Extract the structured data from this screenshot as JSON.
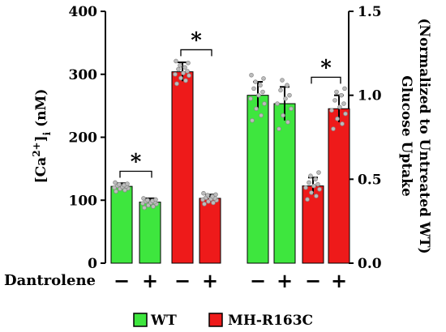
{
  "chart_data": [
    {
      "type": "bar",
      "panel": "calcium",
      "ylabel_parts": {
        "base": "[Ca",
        "sup": "2+",
        "close": "]",
        "sub": "i",
        "unit": " (nM)"
      },
      "ylim": [
        0,
        400
      ],
      "yticks": [
        0,
        100,
        200,
        300,
        400
      ],
      "bars": [
        {
          "group": "WT",
          "dantrolene": "−",
          "value": 122,
          "error": 5,
          "points": [
            114,
            116,
            118,
            119,
            120,
            121,
            122,
            123,
            124,
            125,
            126,
            128
          ]
        },
        {
          "group": "WT",
          "dantrolene": "+",
          "value": 97,
          "error": 6,
          "points": [
            88,
            90,
            92,
            94,
            95,
            96,
            97,
            98,
            99,
            100,
            101,
            103
          ]
        },
        {
          "group": "MH-R163C",
          "dantrolene": "−",
          "value": 304,
          "error": 15,
          "points": [
            285,
            290,
            294,
            298,
            300,
            302,
            305,
            308,
            311,
            314,
            318,
            321
          ]
        },
        {
          "group": "MH-R163C",
          "dantrolene": "+",
          "value": 103,
          "error": 6,
          "points": [
            94,
            96,
            98,
            100,
            101,
            102,
            103,
            104,
            106,
            108,
            109,
            111
          ]
        }
      ],
      "significance": [
        {
          "pair": [
            0,
            1
          ],
          "label": "*"
        },
        {
          "pair": [
            2,
            3
          ],
          "label": "*"
        }
      ]
    },
    {
      "type": "bar",
      "panel": "glucose",
      "ylabel_lines": [
        "Glucose Uptake",
        "(Normalized to Untreated WT)"
      ],
      "ylim": [
        0,
        1.5
      ],
      "yticks": [
        0,
        0.5,
        1.0,
        1.5
      ],
      "ytick_labels": [
        "0.0",
        "0.5",
        "1.0",
        "1.5"
      ],
      "bars": [
        {
          "group": "WT",
          "dantrolene": "−",
          "value": 1.0,
          "error": 0.08,
          "points": [
            0.85,
            0.88,
            0.92,
            0.95,
            0.98,
            1.0,
            1.02,
            1.04,
            1.06,
            1.08,
            1.1,
            1.12
          ]
        },
        {
          "group": "WT",
          "dantrolene": "+",
          "value": 0.95,
          "error": 0.1,
          "points": [
            0.8,
            0.84,
            0.88,
            0.92,
            0.95,
            0.98,
            1.0,
            1.03,
            1.06,
            1.09
          ]
        },
        {
          "group": "MH-R163C",
          "dantrolene": "−",
          "value": 0.46,
          "error": 0.05,
          "points": [
            0.38,
            0.4,
            0.42,
            0.44,
            0.45,
            0.46,
            0.47,
            0.48,
            0.5,
            0.52,
            0.54
          ]
        },
        {
          "group": "MH-R163C",
          "dantrolene": "+",
          "value": 0.92,
          "error": 0.08,
          "points": [
            0.8,
            0.83,
            0.86,
            0.89,
            0.91,
            0.93,
            0.95,
            0.97,
            1.0,
            1.02,
            1.04
          ]
        }
      ],
      "significance": [
        {
          "pair": [
            2,
            3
          ],
          "label": "*"
        }
      ]
    }
  ],
  "treatment_label": "Dantrolene",
  "legend": [
    {
      "label": "WT",
      "color": "#3ee63e"
    },
    {
      "label": "MH-R163C",
      "color": "#ee1a1a"
    }
  ],
  "colors": {
    "WT": "#3ee63e",
    "MH-R163C": "#ee1a1a",
    "points": "#8a8a8a"
  }
}
